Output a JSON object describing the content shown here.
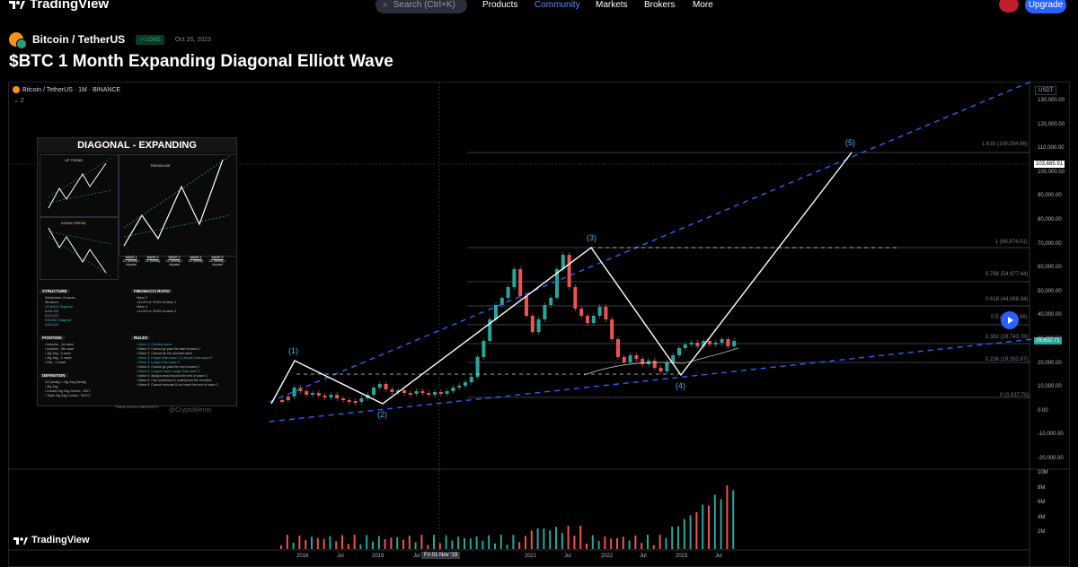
{
  "topnav": {
    "logo": "TradingView",
    "search_placeholder": "Search (Ctrl+K)",
    "items": [
      "Products",
      "Community",
      "Markets",
      "Brokers",
      "More"
    ],
    "active_item": "Community",
    "upgrade_label": "Upgrade"
  },
  "idea": {
    "symbol": "Bitcoin / TetherUS",
    "direction": "LONG",
    "date": "Oct 20, 2023",
    "title": "$BTC 1 Month Expanding Diagonal Elliott Wave"
  },
  "chart": {
    "header": "Bitcoin / TetherUS · 1M · BINANCE",
    "collapse": "⌄ 2",
    "currency": "USDT",
    "price_axis": [
      "130,000.00",
      "120,000.00",
      "110,000.00",
      "100,000.00",
      "90,000.00",
      "80,000.00",
      "70,000.00",
      "60,000.00",
      "50,000.00",
      "40,000.00",
      "30,000.00",
      "20,000.00",
      "10,000.00",
      "0.00",
      "-10,000.00",
      "-20,000.00"
    ],
    "time_axis": [
      "2018",
      "Jul",
      "2019",
      "Jul",
      "2021",
      "Jul",
      "2022",
      "Jul",
      "2023",
      "Jul",
      "Jul",
      "Jul"
    ],
    "time_cursor": "Fri 01 Nov '19",
    "crosshair_price": "103,685.91",
    "last_price": "29,632.71",
    "volume_axis": [
      "10M",
      "8M",
      "6M",
      "4M",
      "2M"
    ],
    "fib_levels": [
      "1.618 (109,004.66)",
      "1 (68,874.01)",
      "0.786 (54,977.64)",
      "0.618 (44,068.34)",
      "0.5 (36,356.06)",
      "0.382 (28,743.78)",
      "0.236 (19,262.67)",
      "0 (3,937.70)"
    ],
    "waves": [
      "(1)",
      "(2)",
      "(3)",
      "(4)",
      "(5)"
    ],
    "watermark": "TradingView"
  },
  "inset": {
    "title": "DIAGONAL - EXPANDING",
    "up_trend": "UP TREND",
    "down_trend": "DOWN TREND",
    "trendline": "TRENDLINE",
    "wave_cells": [
      {
        "name": "WAVE 1",
        "desc": "ZZ (family) / Impulse"
      },
      {
        "name": "WAVE 2",
        "desc": "ZZ (family)"
      },
      {
        "name": "WAVE 3",
        "desc": "ZZ (family) / Impulse"
      },
      {
        "name": "WAVE 4",
        "desc": "ZZ (family)"
      },
      {
        "name": "WAVE 5",
        "desc": "ZZ (family) / Impulse"
      }
    ],
    "structure_title": "STRUCTURE",
    "structure_lines": [
      "Subdivision: 5 waves",
      "Structure:",
      "LEADING Diagonal",
      "5-3-5-3-5",
      "3-3-3-3-3",
      "ENDING Diagonal",
      "3-3-3-3-3"
    ],
    "fib_title": "FIBONACCI RATIO",
    "fib_lines": [
      "Wave 2",
      "• 61.8% or 78.6% of wave 1",
      "Wave 4",
      "• 61.8% or 78.6% of wave 3"
    ],
    "position_title": "POSITION",
    "position_lines": [
      "• Impulse - 1st wave",
      "• Impulse - 5th wave",
      "• Zig Zag - A wave",
      "• Zig Zag - C wave",
      "• Flat - C wave"
    ],
    "rules_title": "RULES",
    "rules_lines": [
      "• Wave 1: Shortest wave",
      "• Wave 2: Cannot go past the start of wave 1",
      "• Wave 3: Cannot be the shortest wave",
      "• Wave 3: Longer than wave 1 & shorter than wave 5",
      "• Wave 4: Longer than wave 2",
      "• Wave 4: Cannot go past the end of wave 2",
      "• Wave 5: Longest wave; longer than wave 3",
      "• Wave 5: Always ends beyond the end of wave 3",
      "• Wave 5: Can overshoot or undershoot the trendline",
      "• Wave 5: Cannot truncate & not reach the end of wave 3"
    ],
    "definition_title": "DEFINITION",
    "definition_lines": [
      "ZZ (family) = Zig Zag (family)",
      "• Zig Zag",
      "• Double Zig Zag Combo - WXY",
      "• Triple Zig Zag Combo - WXYZ"
    ],
    "brand": "TRADE DEVILS UNIVERSITY",
    "handle": "@CryptoMento"
  },
  "colors": {
    "up": "#26a69a",
    "down": "#ef5350",
    "trend": "#2962ff",
    "wave_label": "#3db4ff",
    "accent": "#2962ff"
  }
}
